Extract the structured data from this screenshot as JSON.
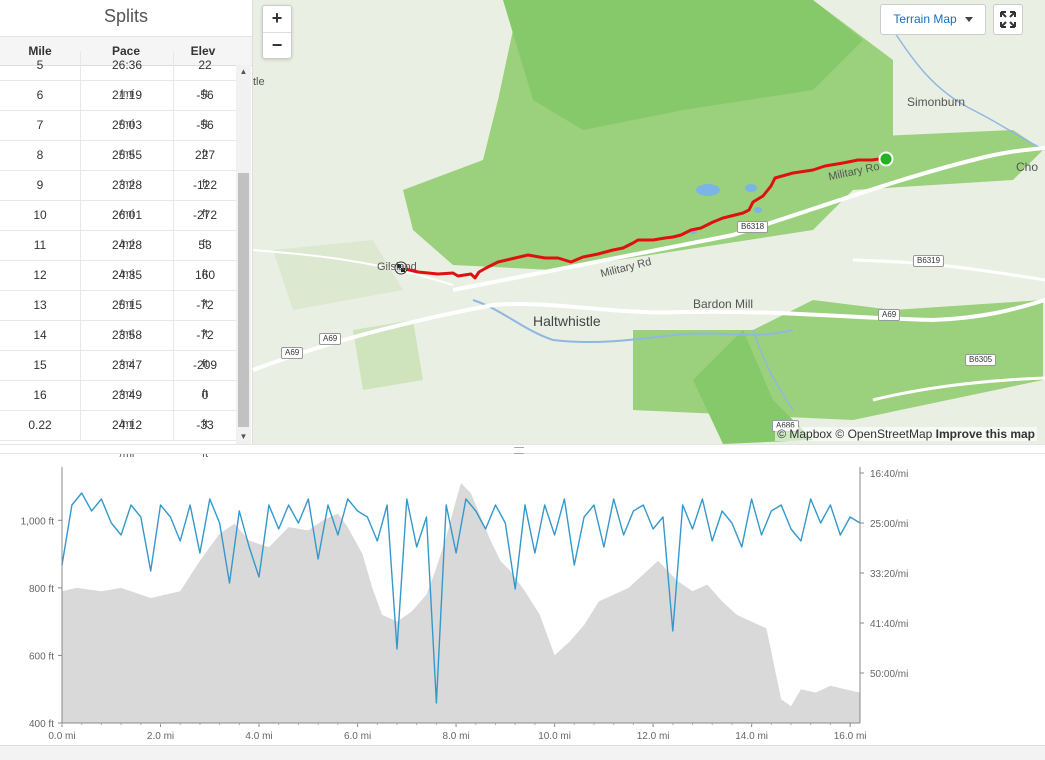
{
  "splits": {
    "title": "Splits",
    "headers": {
      "mile": "Mile",
      "pace": "Pace",
      "elev": "Elev"
    },
    "rows": [
      {
        "mile": "5",
        "pace": "26:36",
        "elev": "22"
      },
      {
        "mile": "6",
        "pace": "21:19",
        "elev": "-56"
      },
      {
        "mile": "7",
        "pace": "25:03",
        "elev": "-56"
      },
      {
        "mile": "8",
        "pace": "25:55",
        "elev": "227"
      },
      {
        "mile": "9",
        "pace": "23:28",
        "elev": "-122"
      },
      {
        "mile": "10",
        "pace": "26:01",
        "elev": "-272"
      },
      {
        "mile": "11",
        "pace": "24:28",
        "elev": "53"
      },
      {
        "mile": "12",
        "pace": "24:35",
        "elev": "160"
      },
      {
        "mile": "13",
        "pace": "25:15",
        "elev": "-72"
      },
      {
        "mile": "14",
        "pace": "23:58",
        "elev": "-72"
      },
      {
        "mile": "15",
        "pace": "23:47",
        "elev": "-209"
      },
      {
        "mile": "16",
        "pace": "23:49",
        "elev": "0"
      },
      {
        "mile": "0.22",
        "pace": "24:12",
        "elev": "-33"
      }
    ],
    "pace_unit": "/mi",
    "elev_unit": "ft"
  },
  "map": {
    "zoom_in": "+",
    "zoom_out": "−",
    "map_type": "Terrain Map",
    "attribution_mapbox": "© Mapbox",
    "attribution_osm": "© OpenStreetMap",
    "attribution_improve": "Improve this map",
    "labels": {
      "haltwhistle": "Haltwhistle",
      "bardon_mill": "Bardon Mill",
      "simonburn": "Simonburn",
      "gilsland": "Gilsland",
      "military_rd_1": "Military Rd",
      "military_rd_2": "Military Ro",
      "cho": "Cho",
      "tle": "tle"
    },
    "roads": {
      "b6318": "B6318",
      "b6319": "B6319",
      "a69_1": "A69",
      "a69_2": "A69",
      "a69_3": "A69",
      "b6305": "B6305",
      "a686": "A686"
    },
    "colors": {
      "route": "#e01010",
      "start": "#22b322",
      "park": "#8fcf6f"
    }
  },
  "chart_data": {
    "type": "area",
    "xlabel": "",
    "x_ticks": [
      "0.0 mi",
      "2.0 mi",
      "4.0 mi",
      "6.0 mi",
      "8.0 mi",
      "10.0 mi",
      "12.0 mi",
      "14.0 mi",
      "16.0 mi"
    ],
    "y_left_ticks": [
      "400 ft",
      "600 ft",
      "800 ft",
      "1,000 ft"
    ],
    "y_right_ticks": [
      "16:40/mi",
      "25:00/mi",
      "33:20/mi",
      "41:40/mi",
      "50:00/mi"
    ],
    "xlim": [
      0,
      16.2
    ],
    "ylim_elev_ft": [
      400,
      1140
    ],
    "ylim_pace_min": [
      16.67,
      58.33
    ],
    "series": [
      {
        "name": "",
        "kind": "elevation",
        "color": "#d9d9d9",
        "x": [
          0,
          0.3,
          0.8,
          1.2,
          1.8,
          2.4,
          2.8,
          3.2,
          3.5,
          3.8,
          4.2,
          4.6,
          5.0,
          5.3,
          5.6,
          5.8,
          6.1,
          6.3,
          6.5,
          6.8,
          7.1,
          7.4,
          7.6,
          7.8,
          8.0,
          8.1,
          8.3,
          8.5,
          8.7,
          8.9,
          9.1,
          9.4,
          9.7,
          10.0,
          10.3,
          10.6,
          10.9,
          11.2,
          11.5,
          11.8,
          12.1,
          12.3,
          12.5,
          12.8,
          13.1,
          13.4,
          13.7,
          14.0,
          14.3,
          14.6,
          14.8,
          15.0,
          15.3,
          15.6,
          15.9,
          16.2
        ],
        "y": [
          790,
          800,
          790,
          800,
          770,
          790,
          880,
          960,
          990,
          940,
          920,
          980,
          970,
          1000,
          1020,
          980,
          900,
          800,
          720,
          700,
          730,
          780,
          860,
          950,
          1060,
          1110,
          1080,
          1010,
          940,
          880,
          850,
          790,
          720,
          600,
          640,
          690,
          760,
          780,
          800,
          840,
          880,
          850,
          820,
          790,
          810,
          760,
          720,
          700,
          680,
          470,
          450,
          500,
          490,
          510,
          500,
          490
        ]
      },
      {
        "name": "",
        "kind": "pace",
        "color": "#3399cc",
        "x": [
          0,
          0.2,
          0.4,
          0.6,
          0.8,
          1.0,
          1.2,
          1.4,
          1.6,
          1.8,
          2.0,
          2.2,
          2.4,
          2.6,
          2.8,
          3.0,
          3.2,
          3.4,
          3.6,
          3.8,
          4.0,
          4.2,
          4.4,
          4.6,
          4.8,
          5.0,
          5.2,
          5.4,
          5.6,
          5.8,
          6.0,
          6.2,
          6.4,
          6.6,
          6.8,
          7.0,
          7.2,
          7.4,
          7.6,
          7.8,
          8.0,
          8.2,
          8.4,
          8.6,
          8.8,
          9.0,
          9.2,
          9.4,
          9.6,
          9.8,
          10.0,
          10.2,
          10.4,
          10.6,
          10.8,
          11.0,
          11.2,
          11.4,
          11.6,
          11.8,
          12.0,
          12.2,
          12.4,
          12.6,
          12.8,
          13.0,
          13.2,
          13.4,
          13.6,
          13.8,
          14.0,
          14.2,
          14.4,
          14.6,
          14.8,
          15.0,
          15.2,
          15.4,
          15.6,
          15.8,
          16.0,
          16.2
        ],
        "y": [
          32,
          22,
          20,
          23,
          21,
          25,
          27,
          22,
          24,
          33,
          22,
          24,
          28,
          22,
          30,
          21,
          25,
          35,
          23,
          29,
          34,
          22,
          26,
          22,
          25,
          21,
          31,
          22,
          27,
          21,
          23,
          24,
          28,
          22,
          46,
          21,
          29,
          24,
          55,
          22,
          30,
          21,
          23,
          26,
          22,
          25,
          36,
          22,
          30,
          22,
          27,
          21,
          32,
          24,
          22,
          29,
          21,
          27,
          23,
          22,
          26,
          24,
          43,
          22,
          26,
          21,
          28,
          23,
          25,
          29,
          21,
          27,
          23,
          22,
          26,
          28,
          21,
          25,
          22,
          27,
          24,
          25
        ]
      }
    ]
  }
}
